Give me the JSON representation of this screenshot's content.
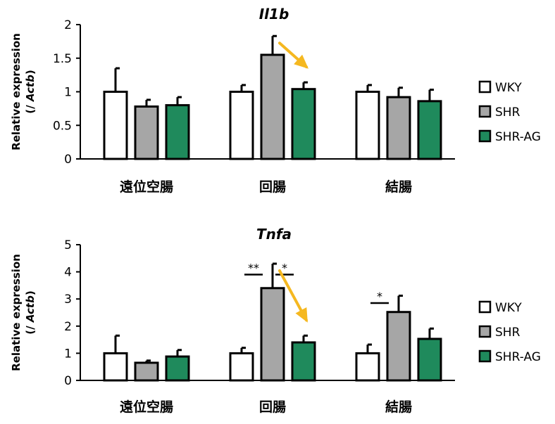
{
  "colors": {
    "wky": "#ffffff",
    "shr": "#a6a6a6",
    "shr_ag": "#1f8a5c",
    "arrow": "#f5b820",
    "stroke": "#000000"
  },
  "chart_data": [
    {
      "type": "bar",
      "title": "Il1b",
      "ylabel": "Relative expression",
      "ylabel_sub_prefix": "(/ ",
      "ylabel_sub_gene": "Actb",
      "ylabel_sub_suffix": ")",
      "ylim": [
        0,
        2
      ],
      "yticks": [
        "0",
        "0.5",
        "1",
        "1.5",
        "2"
      ],
      "ytick_values": [
        0,
        0.5,
        1,
        1.5,
        2
      ],
      "categories": [
        "遠位空腸",
        "回腸",
        "結腸"
      ],
      "series": [
        {
          "name": "WKY",
          "values": [
            1.0,
            1.0,
            1.0
          ],
          "errors": [
            0.35,
            0.1,
            0.1
          ]
        },
        {
          "name": "SHR",
          "values": [
            0.78,
            1.55,
            0.92
          ],
          "errors": [
            0.1,
            0.28,
            0.14
          ]
        },
        {
          "name": "SHR-AG",
          "values": [
            0.8,
            1.04,
            0.86
          ],
          "errors": [
            0.12,
            0.1,
            0.17
          ]
        }
      ],
      "significance": [],
      "arrow": {
        "category": 1,
        "from_series": 1,
        "to_series": 2
      },
      "legend_position": "right",
      "grid": false
    },
    {
      "type": "bar",
      "title": "Tnfa",
      "ylabel": "Relative expression",
      "ylabel_sub_prefix": "(/ ",
      "ylabel_sub_gene": "Actb",
      "ylabel_sub_suffix": ")",
      "ylim": [
        0,
        5
      ],
      "yticks": [
        "0",
        "1",
        "2",
        "3",
        "4",
        "5"
      ],
      "ytick_values": [
        0,
        1,
        2,
        3,
        4,
        5
      ],
      "categories": [
        "遠位空腸",
        "回腸",
        "結腸"
      ],
      "series": [
        {
          "name": "WKY",
          "values": [
            1.0,
            1.0,
            1.0
          ],
          "errors": [
            0.65,
            0.2,
            0.32
          ]
        },
        {
          "name": "SHR",
          "values": [
            0.65,
            3.4,
            2.52
          ],
          "errors": [
            0.08,
            0.9,
            0.6
          ]
        },
        {
          "name": "SHR-AG",
          "values": [
            0.88,
            1.4,
            1.53
          ],
          "errors": [
            0.24,
            0.25,
            0.38
          ]
        }
      ],
      "significance": [
        {
          "category": 1,
          "between": [
            0,
            1
          ],
          "label": "**",
          "level": 3.9
        },
        {
          "category": 1,
          "between": [
            1,
            2
          ],
          "label": "*",
          "level": 3.9
        },
        {
          "category": 2,
          "between": [
            0,
            1
          ],
          "label": "*",
          "level": 2.85
        }
      ],
      "arrow": {
        "category": 1,
        "from_series": 1,
        "to_series": 2
      },
      "legend_position": "right",
      "grid": false
    }
  ]
}
